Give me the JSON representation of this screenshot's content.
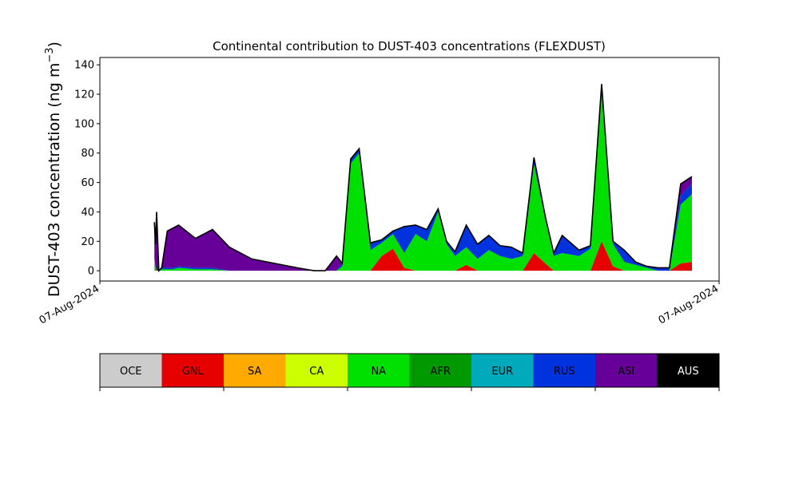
{
  "chart_data": {
    "type": "area",
    "stacked": true,
    "title": "Continental contribution to DUST-403 concentrations (FLEXDUST)",
    "ylabel": "DUST-403 concentration (ng m",
    "ylabel_superscript": "−3",
    "ylabel_close": ")",
    "ylim": [
      -7,
      145
    ],
    "yticks": [
      0,
      20,
      40,
      60,
      80,
      100,
      120,
      140
    ],
    "ytick_labels": [
      "0",
      "20",
      "40",
      "60",
      "80",
      "100",
      "120",
      "140"
    ],
    "x_tick_labels": [
      "07-Aug-2024",
      "07-Aug-2024"
    ],
    "grid": false,
    "x": [
      0.047,
      0.049,
      0.051,
      0.055,
      0.06,
      0.07,
      0.08,
      0.09,
      0.12,
      0.15,
      0.18,
      0.22,
      0.3,
      0.33,
      0.35,
      0.37,
      0.38,
      0.395,
      0.41,
      0.43,
      0.45,
      0.47,
      0.49,
      0.51,
      0.53,
      0.55,
      0.565,
      0.58,
      0.6,
      0.62,
      0.64,
      0.66,
      0.68,
      0.7,
      0.72,
      0.74,
      0.755,
      0.77,
      0.8,
      0.82,
      0.84,
      0.86,
      0.88,
      0.9,
      0.92,
      0.94,
      0.96,
      0.98,
      1.0
    ],
    "series": [
      {
        "name": "GNL",
        "color": "#e60000",
        "values": [
          0,
          0,
          0,
          0,
          0,
          0,
          0,
          0,
          0,
          0,
          0,
          0,
          0,
          0,
          0,
          0,
          0,
          0,
          0,
          0,
          10,
          15,
          2,
          0,
          0,
          0,
          0,
          0,
          4,
          0,
          0,
          0,
          0,
          0,
          12,
          5,
          0,
          0,
          0,
          0,
          20,
          3,
          0,
          0,
          0,
          0,
          0,
          5,
          6
        ]
      },
      {
        "name": "NA",
        "color": "#00e000",
        "values": [
          8,
          2,
          0,
          0,
          1,
          1,
          1,
          2,
          1,
          1,
          0,
          0,
          0,
          0,
          0,
          0,
          3,
          73,
          80,
          14,
          9,
          10,
          10,
          25,
          20,
          40,
          18,
          10,
          12,
          8,
          14,
          10,
          8,
          10,
          60,
          30,
          10,
          12,
          10,
          15,
          100,
          15,
          6,
          4,
          2,
          0,
          0,
          40,
          46
        ]
      },
      {
        "name": "RUS",
        "color": "#0033dd",
        "values": [
          2,
          1,
          0,
          0,
          1,
          1,
          1,
          1,
          1,
          1,
          0,
          0,
          0,
          0,
          0,
          0,
          2,
          2,
          2,
          4,
          2,
          2,
          18,
          6,
          8,
          2,
          2,
          3,
          15,
          10,
          10,
          7,
          8,
          2,
          4,
          2,
          2,
          12,
          4,
          2,
          4,
          2,
          8,
          2,
          1,
          2,
          2,
          6,
          7
        ]
      },
      {
        "name": "ASI",
        "color": "#660099",
        "values": [
          22,
          15,
          40,
          0,
          0,
          25,
          27,
          28,
          20,
          26,
          16,
          8,
          2,
          0,
          0,
          10,
          0,
          0,
          0,
          0,
          0,
          0,
          0,
          0,
          0,
          0,
          0,
          0,
          0,
          0,
          0,
          0,
          0,
          0,
          0,
          0,
          0,
          0,
          0,
          0,
          0,
          0,
          0,
          0,
          0,
          0,
          0,
          8,
          5
        ]
      },
      {
        "name": "AUS",
        "color": "#000000",
        "values": [
          1,
          0,
          0,
          0,
          0,
          0,
          0,
          0,
          0,
          0,
          0,
          0,
          0,
          0,
          0,
          0,
          0,
          1,
          1,
          1,
          0,
          0,
          0,
          0,
          0,
          0,
          0,
          0,
          0,
          0,
          0,
          0,
          0,
          0,
          1,
          0,
          0,
          0,
          0,
          0,
          3,
          0,
          0,
          0,
          0,
          0,
          0,
          0,
          0
        ]
      }
    ]
  },
  "legend": {
    "items": [
      {
        "label": "OCE",
        "color": "#cccccc"
      },
      {
        "label": "GNL",
        "color": "#e60000"
      },
      {
        "label": "SA",
        "color": "#ffaa00"
      },
      {
        "label": "CA",
        "color": "#ccff00"
      },
      {
        "label": "NA",
        "color": "#00e000"
      },
      {
        "label": "AFR",
        "color": "#009900"
      },
      {
        "label": "EUR",
        "color": "#00aabb"
      },
      {
        "label": "RUS",
        "color": "#0033dd"
      },
      {
        "label": "ASI",
        "color": "#660099"
      },
      {
        "label": "AUS",
        "color": "#000000"
      }
    ]
  }
}
